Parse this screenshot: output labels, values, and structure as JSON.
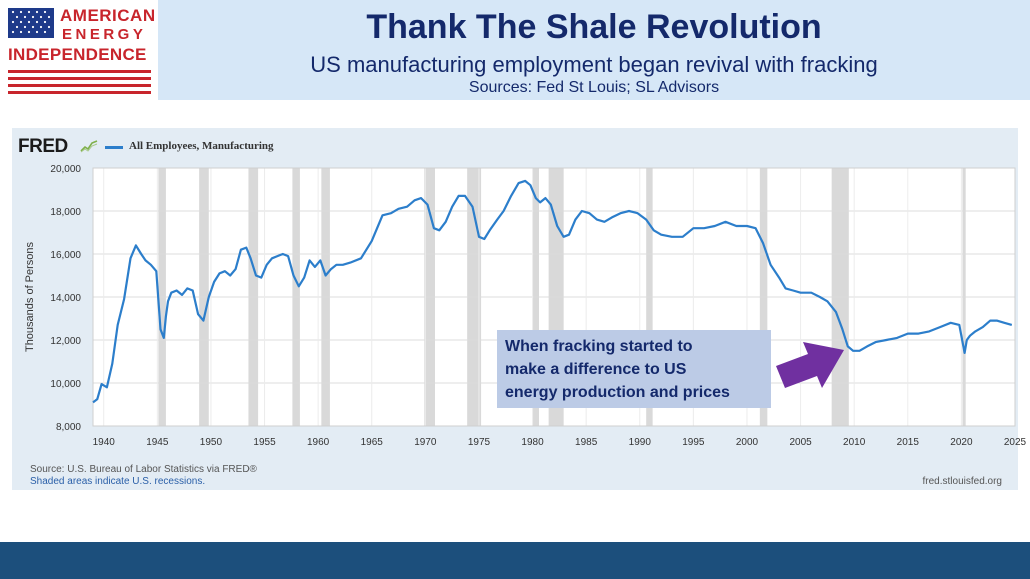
{
  "header": {
    "title": "Thank The Shale Revolution",
    "subtitle": "US manufacturing employment began revival with fracking",
    "sources": "Sources: Fed St Louis; SL Advisors"
  },
  "logo": {
    "line1": "AMERICAN",
    "line2": "ENERGY",
    "line3": "INDEPENDENCE",
    "colors": {
      "red": "#c8252c",
      "blue": "#1e3a8a"
    }
  },
  "fred": {
    "logo_text": "FRED",
    "source_note": "Source: U.S. Bureau of Labor Statistics via FRED®",
    "shade_note": "Shaded areas indicate U.S. recessions.",
    "url": "fred.stlouisfed.org"
  },
  "annotation": {
    "lines": [
      "When fracking started to",
      "make a difference to US",
      "energy production and prices"
    ],
    "arrow_color": "#7030a0"
  },
  "chart_data": {
    "type": "line",
    "title": "",
    "xlabel": "",
    "ylabel": "Thousands of Persons",
    "xlim": [
      1939,
      2025
    ],
    "ylim": [
      8000,
      20000
    ],
    "grid": true,
    "legend_placement": "top-left",
    "line_color": "#2c7ecb",
    "x_ticks": [
      1940,
      1945,
      1950,
      1955,
      1960,
      1965,
      1970,
      1975,
      1980,
      1985,
      1990,
      1995,
      2000,
      2005,
      2010,
      2015,
      2020,
      2025
    ],
    "y_ticks": [
      8000,
      10000,
      12000,
      14000,
      16000,
      18000,
      20000
    ],
    "y_tick_labels": [
      "8,000",
      "10,000",
      "12,000",
      "14,000",
      "16,000",
      "18,000",
      "20,000"
    ],
    "series": [
      {
        "name": "All Employees, Manufacturing",
        "x": [
          1939.0,
          1939.4,
          1939.8,
          1940.3,
          1940.8,
          1941.3,
          1941.9,
          1942.5,
          1943.0,
          1943.5,
          1943.9,
          1944.4,
          1944.9,
          1945.3,
          1945.6,
          1945.8,
          1946.0,
          1946.3,
          1946.8,
          1947.3,
          1947.8,
          1948.3,
          1948.8,
          1949.3,
          1949.8,
          1950.3,
          1950.8,
          1951.3,
          1951.8,
          1952.3,
          1952.8,
          1953.3,
          1953.7,
          1954.2,
          1954.7,
          1955.2,
          1955.7,
          1956.2,
          1956.7,
          1957.2,
          1957.7,
          1958.2,
          1958.7,
          1959.2,
          1959.7,
          1960.2,
          1960.7,
          1961.2,
          1961.7,
          1962.3,
          1963.0,
          1964.0,
          1965.0,
          1966.0,
          1966.8,
          1967.5,
          1968.3,
          1969.0,
          1969.6,
          1970.2,
          1970.8,
          1971.3,
          1971.9,
          1972.5,
          1973.1,
          1973.7,
          1974.4,
          1975.0,
          1975.5,
          1976.0,
          1976.7,
          1977.3,
          1978.0,
          1978.7,
          1979.3,
          1979.8,
          1980.3,
          1980.7,
          1981.2,
          1981.7,
          1982.3,
          1982.9,
          1983.4,
          1984.0,
          1984.6,
          1985.3,
          1986.0,
          1986.7,
          1987.4,
          1988.2,
          1989.0,
          1989.8,
          1990.6,
          1991.3,
          1992.0,
          1993.0,
          1994.0,
          1995.0,
          1996.0,
          1997.0,
          1998.0,
          1999.0,
          2000.0,
          2000.8,
          2001.5,
          2002.2,
          2003.0,
          2003.6,
          2004.3,
          2005.0,
          2006.0,
          2006.8,
          2007.5,
          2008.3,
          2008.9,
          2009.4,
          2009.9,
          2010.5,
          2011.2,
          2012.0,
          2013.0,
          2014.0,
          2015.0,
          2016.0,
          2017.0,
          2018.0,
          2019.0,
          2019.8,
          2020.3,
          2020.5,
          2020.8,
          2021.3,
          2022.0,
          2022.7,
          2023.3,
          2024.0,
          2024.7
        ],
        "values": [
          9100,
          9250,
          9950,
          9800,
          10900,
          12700,
          13900,
          15800,
          16400,
          16000,
          15700,
          15500,
          15200,
          12500,
          12100,
          13100,
          13800,
          14200,
          14300,
          14100,
          14400,
          14300,
          13200,
          12900,
          14000,
          14700,
          15100,
          15200,
          15000,
          15300,
          16200,
          16300,
          15800,
          15000,
          14900,
          15500,
          15800,
          15900,
          16000,
          15900,
          15000,
          14500,
          14900,
          15700,
          15400,
          15700,
          15000,
          15300,
          15500,
          15500,
          15600,
          15800,
          16600,
          17800,
          17900,
          18100,
          18200,
          18500,
          18600,
          18300,
          17200,
          17100,
          17500,
          18200,
          18700,
          18700,
          18200,
          16800,
          16700,
          17100,
          17600,
          18000,
          18700,
          19300,
          19400,
          19200,
          18600,
          18400,
          18600,
          18300,
          17300,
          16800,
          16900,
          17600,
          18000,
          17900,
          17600,
          17500,
          17700,
          17900,
          18000,
          17900,
          17600,
          17100,
          16900,
          16800,
          16800,
          17200,
          17200,
          17300,
          17500,
          17300,
          17300,
          17200,
          16500,
          15500,
          14900,
          14400,
          14300,
          14200,
          14200,
          14000,
          13800,
          13300,
          12500,
          11700,
          11500,
          11500,
          11700,
          11900,
          12000,
          12100,
          12300,
          12300,
          12400,
          12600,
          12800,
          12700,
          11400,
          12000,
          12200,
          12400,
          12600,
          12900,
          12900,
          12800,
          12700
        ]
      }
    ],
    "recessions": [
      [
        1945.1,
        1945.8
      ],
      [
        1948.9,
        1949.8
      ],
      [
        1953.5,
        1954.4
      ],
      [
        1957.6,
        1958.3
      ],
      [
        1960.3,
        1961.1
      ],
      [
        1969.9,
        1970.9
      ],
      [
        1973.9,
        1975.2
      ],
      [
        1980.0,
        1980.6
      ],
      [
        1981.5,
        1982.9
      ],
      [
        1990.6,
        1991.2
      ],
      [
        2001.2,
        2001.9
      ],
      [
        2007.9,
        2009.5
      ],
      [
        2020.1,
        2020.4
      ]
    ]
  }
}
